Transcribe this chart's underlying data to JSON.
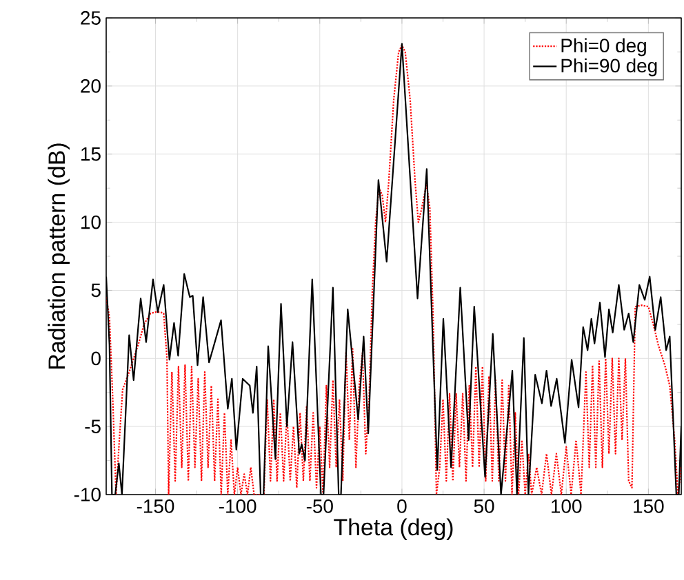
{
  "chart_data": {
    "type": "line",
    "xlabel": "Theta (deg)",
    "ylabel": "Radiation pattern (dB)",
    "xlim": [
      -180,
      170
    ],
    "ylim": [
      -10,
      25
    ],
    "xticks": [
      -150,
      -100,
      -50,
      0,
      50,
      100,
      150
    ],
    "yticks": [
      -10,
      -5,
      0,
      5,
      10,
      15,
      20,
      25
    ],
    "grid": true,
    "legend": "top right",
    "series": [
      {
        "name": "Phi=0 deg",
        "color": "#ff0000",
        "line_style": "dotted",
        "x": [
          -180,
          -178,
          -176,
          -174,
          -172,
          -170,
          -166,
          -160,
          -157,
          -153,
          -150,
          -147,
          -145,
          -143,
          -142,
          -140,
          -138,
          -136,
          -134,
          -132,
          -130,
          -128,
          -126,
          -124,
          -122,
          -120,
          -118,
          -116,
          -114,
          -112,
          -110,
          -108,
          -106,
          -104,
          -102,
          -100,
          -98,
          -96,
          -94,
          -92,
          -90,
          -88,
          -84,
          -82,
          -80,
          -78,
          -76,
          -74,
          -72,
          -70,
          -68,
          -66,
          -64,
          -62,
          -60,
          -58,
          -56,
          -54,
          -52,
          -50,
          -48,
          -46,
          -44,
          -42,
          -40,
          -38,
          -36,
          -34,
          -32,
          -30,
          -28,
          -26,
          -24,
          -22,
          -20,
          -18,
          -16,
          -14,
          -12,
          -10,
          -8,
          -5,
          -2,
          0,
          2,
          5,
          8,
          10,
          12,
          15,
          17,
          19,
          21,
          23,
          25,
          27,
          29,
          31,
          33,
          35,
          37,
          39,
          41,
          43,
          45,
          47,
          49,
          51,
          53,
          55,
          57,
          59,
          61,
          63,
          65,
          67,
          69,
          71,
          73,
          75,
          77,
          79,
          82,
          85,
          88,
          91,
          94,
          97,
          100,
          103,
          106,
          109,
          112,
          114,
          116,
          118,
          120,
          122,
          124,
          126,
          128,
          130,
          132,
          134,
          136,
          138,
          140,
          142,
          146,
          150,
          153,
          156,
          160,
          163,
          166,
          168,
          170
        ],
        "values": [
          4.5,
          3,
          -3,
          -10,
          -6,
          -2.3,
          -1,
          1.2,
          2.5,
          3.3,
          3.4,
          3.4,
          3.3,
          0,
          -10,
          -1,
          -9,
          -0.6,
          -8,
          -0.5,
          -9,
          -0.6,
          -8,
          -1.5,
          -9,
          -1,
          -8,
          -2,
          -9,
          -3,
          -10,
          -4,
          -10,
          -6,
          -10,
          -8,
          -10,
          -8.5,
          -10,
          -8,
          -10,
          -10,
          -10,
          -3,
          -9,
          -3,
          -9,
          -4,
          -9,
          -4,
          -9,
          -5,
          -9.5,
          -4,
          -9,
          -3.5,
          -9,
          -4,
          -9.5,
          -5,
          -10,
          -2,
          -8,
          -1.6,
          -8,
          -3,
          -9,
          0.5,
          -6,
          0.7,
          -8,
          -2,
          0.4,
          -7,
          -3,
          5,
          10,
          12.5,
          12,
          10,
          13,
          19,
          22.5,
          23,
          22.5,
          19,
          13,
          10,
          11,
          12.8,
          11,
          3,
          -10,
          -8,
          -3,
          -9,
          -2.6,
          -9,
          -2.6,
          -8,
          -2.6,
          -9,
          -2,
          -8,
          -0.6,
          -8,
          -0.6,
          -9,
          -1.3,
          -9,
          -1.6,
          -9,
          -1.6,
          -9,
          -2,
          -10,
          -4,
          -10,
          -6,
          -10,
          -7,
          -10,
          -8,
          -10,
          -7,
          -10,
          -7,
          -10,
          -6.5,
          -10,
          -6,
          -10,
          -1,
          -8,
          -0.5,
          -8,
          -0.2,
          -8,
          0,
          -7,
          0,
          -7,
          0,
          -6,
          0,
          -9,
          -9.5,
          3.8,
          3.9,
          3.8,
          2.5,
          1,
          -0.5,
          -2,
          -6,
          -10,
          -8
        ]
      },
      {
        "name": "Phi=90 deg",
        "color": "#000000",
        "line_style": "solid",
        "x": [
          -180,
          -178,
          -176.5,
          -174.5,
          -172.3,
          -170.4,
          -166,
          -163.3,
          -159,
          -155.7,
          -151.5,
          -148.6,
          -145,
          -141.5,
          -138.7,
          -136.2,
          -132.5,
          -129.1,
          -127.3,
          -124.4,
          -121,
          -117.4,
          -110.1,
          -106,
          -103.5,
          -100.8,
          -96.9,
          -92.6,
          -90.7,
          -88.4,
          -86,
          -84.2,
          -81.4,
          -77,
          -73.6,
          -70,
          -66.6,
          -62.5,
          -61,
          -59,
          -54.6,
          -49.3,
          -47.7,
          -42,
          -38.5,
          -37.1,
          -33,
          -26.6,
          -23.3,
          -20.5,
          -14.3,
          -9.3,
          0,
          9.5,
          15.1,
          21.5,
          25.2,
          29.9,
          35.5,
          40.6,
          44,
          50.6,
          55.3,
          60.3,
          67.2,
          70,
          74.2,
          77,
          81.1,
          85.2,
          88,
          90.8,
          94.2,
          99.2,
          103.3,
          107.5,
          110.3,
          113,
          115.3,
          117.2,
          120.5,
          123.6,
          126,
          128.3,
          132,
          135.3,
          138,
          140.8,
          144.5,
          147.8,
          150.8,
          154.2,
          157.5,
          160.8,
          163,
          167,
          168.5,
          170
        ],
        "values": [
          6,
          1,
          -10,
          -10,
          -7.7,
          -10,
          1.7,
          -1.6,
          4.4,
          1.2,
          5.8,
          3.4,
          5.4,
          -0.1,
          2.6,
          0.2,
          6.2,
          4.5,
          4.6,
          -0.5,
          4.5,
          -0.3,
          2.8,
          -3.7,
          -1.5,
          -6.7,
          -1.5,
          -2,
          -4,
          -0.6,
          -10,
          -10,
          0.9,
          -7.4,
          4,
          -5,
          1.2,
          -7,
          -6.3,
          -7.5,
          5.8,
          -10,
          -10,
          5.2,
          -10,
          -10,
          3.6,
          -4.5,
          1.6,
          -5.5,
          13.1,
          7.1,
          23.1,
          4.4,
          13.9,
          -8.2,
          2.9,
          -8,
          5.2,
          -6,
          3.8,
          -8.7,
          1.8,
          -10,
          -0.9,
          -10,
          1.5,
          -10,
          -1.2,
          -3.3,
          -0.9,
          -3.5,
          -1.5,
          -6.2,
          -0.1,
          -3.6,
          2.3,
          0.6,
          2.9,
          1.1,
          4.1,
          0.1,
          3.6,
          1.9,
          5.4,
          2.1,
          3.3,
          1.2,
          5.4,
          4.3,
          6,
          2.1,
          4.5,
          0.6,
          1.6,
          -10,
          -10,
          -5
        ]
      }
    ]
  }
}
